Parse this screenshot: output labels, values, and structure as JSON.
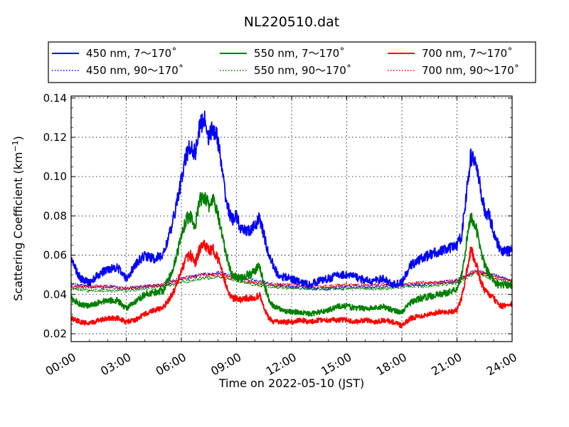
{
  "chart_data": {
    "type": "line",
    "title": "NL220510.dat",
    "xlabel": "Time on 2022-05-10 (JST)",
    "ylabel": "Scattering Coefficient (km",
    "ylabel_sup": "−1",
    "ylabel_close": ")",
    "xlim": [
      0,
      24
    ],
    "ylim": [
      0.016,
      0.141
    ],
    "x_ticks": [
      0,
      3,
      6,
      9,
      12,
      15,
      18,
      21,
      24
    ],
    "x_tick_labels": [
      "00:00",
      "03:00",
      "06:00",
      "09:00",
      "12:00",
      "15:00",
      "18:00",
      "21:00",
      "24:00"
    ],
    "y_ticks": [
      0.02,
      0.04,
      0.06,
      0.08,
      0.1,
      0.12,
      0.14
    ],
    "y_tick_labels": [
      "0.02",
      "0.04",
      "0.06",
      "0.08",
      "0.10",
      "0.12",
      "0.14"
    ],
    "grid": true,
    "legend_position": "top",
    "series": [
      {
        "name": "450 nm, 7～170˚",
        "color": "#0000ff",
        "style": "solid",
        "x": [
          0,
          0.5,
          1,
          1.5,
          2,
          2.5,
          3,
          3.5,
          4,
          4.5,
          5,
          5.5,
          5.75,
          6,
          6.25,
          6.5,
          6.75,
          7,
          7.25,
          7.5,
          7.75,
          8,
          8.25,
          8.5,
          8.75,
          9,
          9.25,
          9.5,
          9.75,
          10,
          10.25,
          10.5,
          10.75,
          11,
          11.25,
          11.5,
          12,
          12.5,
          13,
          13.5,
          14,
          14.5,
          15,
          15.5,
          16,
          16.5,
          17,
          17.5,
          18,
          18.5,
          19,
          19.5,
          20,
          20.5,
          21,
          21.25,
          21.5,
          21.75,
          22,
          22.25,
          22.5,
          22.75,
          23,
          23.25,
          23.5,
          24
        ],
        "y": [
          0.058,
          0.048,
          0.046,
          0.05,
          0.053,
          0.054,
          0.048,
          0.055,
          0.06,
          0.058,
          0.06,
          0.075,
          0.087,
          0.098,
          0.11,
          0.116,
          0.112,
          0.125,
          0.13,
          0.12,
          0.125,
          0.118,
          0.1,
          0.085,
          0.078,
          0.08,
          0.072,
          0.073,
          0.072,
          0.075,
          0.079,
          0.07,
          0.06,
          0.055,
          0.05,
          0.049,
          0.048,
          0.046,
          0.045,
          0.047,
          0.048,
          0.05,
          0.05,
          0.049,
          0.047,
          0.047,
          0.048,
          0.045,
          0.046,
          0.055,
          0.058,
          0.06,
          0.062,
          0.063,
          0.065,
          0.07,
          0.09,
          0.11,
          0.108,
          0.095,
          0.083,
          0.08,
          0.072,
          0.065,
          0.062,
          0.062
        ]
      },
      {
        "name": "450 nm, 90～170˚",
        "color": "#0000ff",
        "style": "dotted",
        "x": [
          0,
          1,
          2,
          3,
          4,
          5,
          6,
          7,
          8,
          9,
          10,
          11,
          12,
          13,
          14,
          15,
          16,
          17,
          18,
          19,
          20,
          21,
          22,
          23,
          24
        ],
        "y": [
          0.045,
          0.044,
          0.044,
          0.043,
          0.044,
          0.045,
          0.048,
          0.05,
          0.051,
          0.049,
          0.047,
          0.045,
          0.044,
          0.043,
          0.043,
          0.044,
          0.044,
          0.044,
          0.045,
          0.045,
          0.046,
          0.047,
          0.052,
          0.05,
          0.047
        ]
      },
      {
        "name": "550 nm, 7～170˚",
        "color": "#008000",
        "style": "solid",
        "x": [
          0,
          0.5,
          1,
          1.5,
          2,
          2.5,
          3,
          3.5,
          4,
          4.5,
          5,
          5.5,
          5.75,
          6,
          6.25,
          6.5,
          6.75,
          7,
          7.25,
          7.5,
          7.75,
          8,
          8.25,
          8.5,
          8.75,
          9,
          9.25,
          9.5,
          9.75,
          10,
          10.25,
          10.5,
          10.75,
          11,
          11.25,
          11.5,
          12,
          12.5,
          13,
          13.5,
          14,
          14.5,
          15,
          15.5,
          16,
          16.5,
          17,
          17.5,
          18,
          18.5,
          19,
          19.5,
          20,
          20.5,
          21,
          21.25,
          21.5,
          21.75,
          22,
          22.25,
          22.5,
          22.75,
          23,
          23.25,
          23.5,
          24
        ],
        "y": [
          0.038,
          0.035,
          0.034,
          0.036,
          0.037,
          0.037,
          0.033,
          0.036,
          0.04,
          0.041,
          0.042,
          0.052,
          0.06,
          0.07,
          0.078,
          0.08,
          0.075,
          0.088,
          0.09,
          0.085,
          0.088,
          0.08,
          0.068,
          0.058,
          0.05,
          0.049,
          0.048,
          0.05,
          0.05,
          0.052,
          0.055,
          0.045,
          0.038,
          0.034,
          0.033,
          0.032,
          0.031,
          0.031,
          0.03,
          0.031,
          0.032,
          0.034,
          0.034,
          0.033,
          0.033,
          0.033,
          0.034,
          0.032,
          0.031,
          0.036,
          0.038,
          0.039,
          0.04,
          0.041,
          0.043,
          0.05,
          0.065,
          0.08,
          0.075,
          0.065,
          0.055,
          0.05,
          0.047,
          0.045,
          0.045,
          0.045
        ]
      },
      {
        "name": "550 nm, 90～170˚",
        "color": "#008000",
        "style": "dotted",
        "x": [
          0,
          1,
          2,
          3,
          4,
          5,
          6,
          7,
          8,
          9,
          10,
          11,
          12,
          13,
          14,
          15,
          16,
          17,
          18,
          19,
          20,
          21,
          22,
          23,
          24
        ],
        "y": [
          0.043,
          0.042,
          0.042,
          0.042,
          0.043,
          0.044,
          0.046,
          0.048,
          0.049,
          0.047,
          0.045,
          0.044,
          0.043,
          0.043,
          0.043,
          0.043,
          0.043,
          0.043,
          0.044,
          0.044,
          0.045,
          0.046,
          0.051,
          0.048,
          0.045
        ]
      },
      {
        "name": "700 nm, 7～170˚",
        "color": "#ff0000",
        "style": "solid",
        "x": [
          0,
          0.5,
          1,
          1.5,
          2,
          2.5,
          3,
          3.5,
          4,
          4.5,
          5,
          5.5,
          5.75,
          6,
          6.25,
          6.5,
          6.75,
          7,
          7.25,
          7.5,
          7.75,
          8,
          8.25,
          8.5,
          8.75,
          9,
          9.25,
          9.5,
          9.75,
          10,
          10.25,
          10.5,
          10.75,
          11,
          11.25,
          11.5,
          12,
          12.5,
          13,
          13.5,
          14,
          14.5,
          15,
          15.5,
          16,
          16.5,
          17,
          17.5,
          18,
          18.5,
          19,
          19.5,
          20,
          20.5,
          21,
          21.25,
          21.5,
          21.75,
          22,
          22.25,
          22.5,
          22.75,
          23,
          23.25,
          23.5,
          24
        ],
        "y": [
          0.028,
          0.026,
          0.025,
          0.027,
          0.028,
          0.028,
          0.026,
          0.027,
          0.03,
          0.032,
          0.033,
          0.04,
          0.045,
          0.052,
          0.058,
          0.06,
          0.056,
          0.063,
          0.066,
          0.062,
          0.063,
          0.058,
          0.05,
          0.043,
          0.038,
          0.038,
          0.037,
          0.038,
          0.038,
          0.038,
          0.04,
          0.033,
          0.028,
          0.026,
          0.026,
          0.026,
          0.026,
          0.027,
          0.026,
          0.027,
          0.027,
          0.027,
          0.027,
          0.026,
          0.027,
          0.026,
          0.027,
          0.026,
          0.024,
          0.028,
          0.029,
          0.03,
          0.031,
          0.031,
          0.032,
          0.038,
          0.05,
          0.063,
          0.057,
          0.048,
          0.042,
          0.04,
          0.038,
          0.035,
          0.034,
          0.035
        ]
      },
      {
        "name": "700 nm, 90～170˚",
        "color": "#ff0000",
        "style": "dotted",
        "x": [
          0,
          1,
          2,
          3,
          4,
          5,
          6,
          7,
          8,
          9,
          10,
          11,
          12,
          13,
          14,
          15,
          16,
          17,
          18,
          19,
          20,
          21,
          22,
          23,
          24
        ],
        "y": [
          0.044,
          0.044,
          0.044,
          0.043,
          0.044,
          0.045,
          0.048,
          0.05,
          0.05,
          0.048,
          0.046,
          0.045,
          0.045,
          0.044,
          0.044,
          0.045,
          0.045,
          0.045,
          0.045,
          0.046,
          0.046,
          0.047,
          0.052,
          0.049,
          0.047
        ]
      }
    ]
  }
}
